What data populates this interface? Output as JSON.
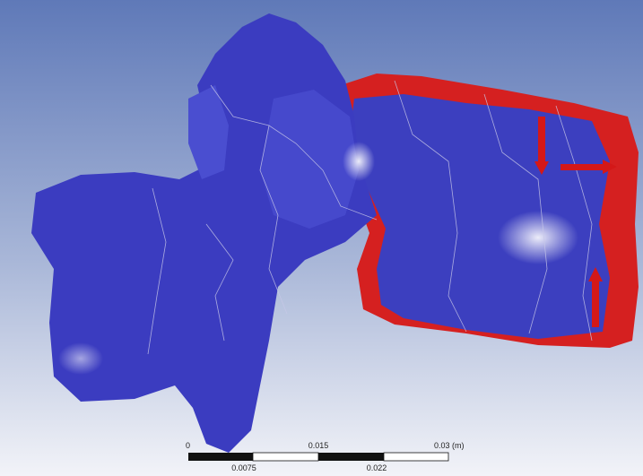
{
  "scale_bar": {
    "top_labels": [
      "0",
      "0.015",
      "0.03 (m)"
    ],
    "bottom_labels": [
      "0.0075",
      "0.022"
    ]
  }
}
